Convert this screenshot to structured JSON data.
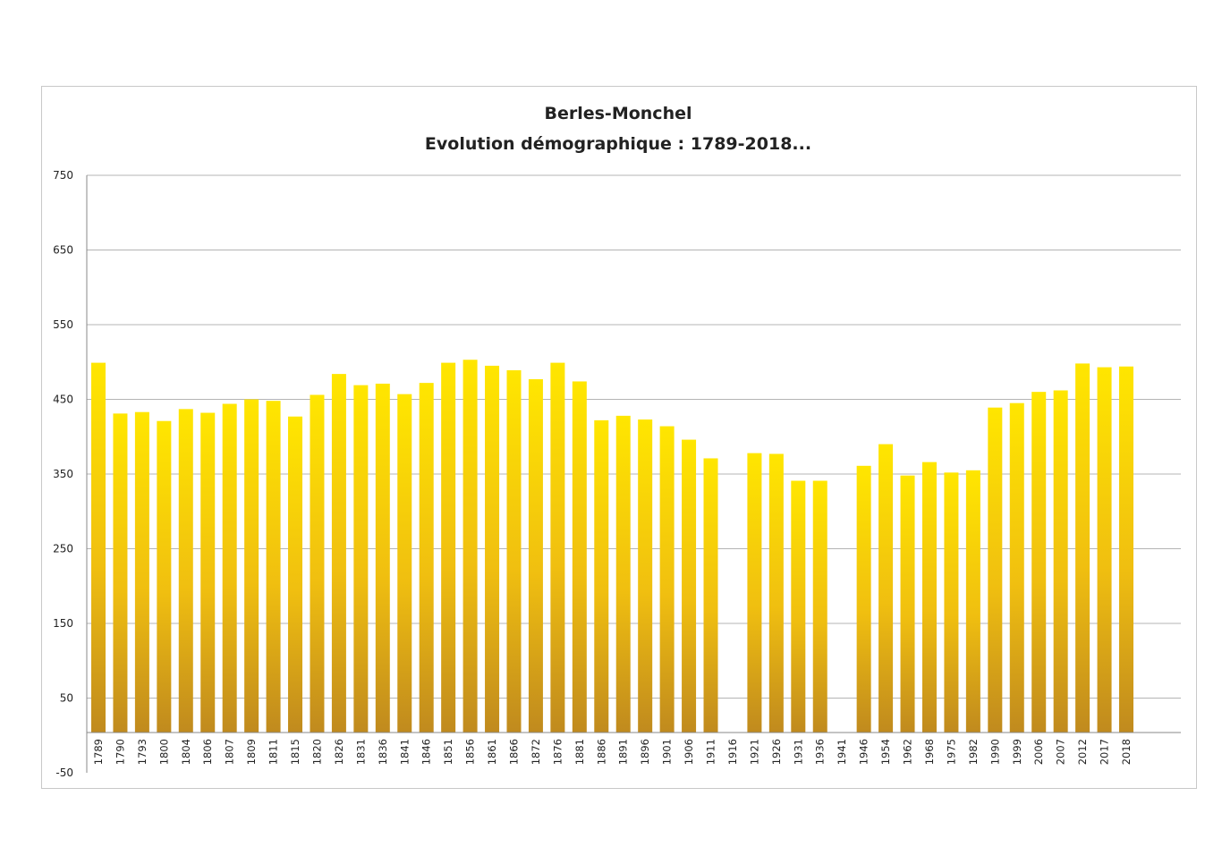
{
  "chart_data": {
    "type": "bar",
    "title": "Berles-Monchel",
    "subtitle": "Evolution démographique : 1789-2018...",
    "xlabel": "",
    "ylabel": "",
    "ylim": [
      -50,
      750
    ],
    "y_ticks": [
      -50,
      50,
      150,
      250,
      350,
      450,
      550,
      650,
      750
    ],
    "y_tick_labels": [
      "-50",
      "50",
      "150",
      "250",
      "350",
      "450",
      "550",
      "650",
      "750"
    ],
    "grid": true,
    "legend": "none",
    "bar_color_top": "#ffe600",
    "bar_color_bottom": "#c08a1e",
    "categories": [
      "1789",
      "1790",
      "1793",
      "1800",
      "1804",
      "1806",
      "1807",
      "1809",
      "1811",
      "1815",
      "1820",
      "1826",
      "1831",
      "1836",
      "1841",
      "1846",
      "1851",
      "1856",
      "1861",
      "1866",
      "1872",
      "1876",
      "1881",
      "1886",
      "1891",
      "1896",
      "1901",
      "1906",
      "1911",
      "1916",
      "1921",
      "1926",
      "1931",
      "1936",
      "1941",
      "1946",
      "1954",
      "1962",
      "1968",
      "1975",
      "1982",
      "1990",
      "1999",
      "2006",
      "2007",
      "2012",
      "2017",
      "2018"
    ],
    "values": [
      499,
      431,
      433,
      421,
      437,
      432,
      444,
      450,
      448,
      427,
      456,
      484,
      469,
      471,
      457,
      472,
      499,
      503,
      495,
      489,
      477,
      499,
      474,
      422,
      428,
      423,
      414,
      396,
      371,
      null,
      378,
      377,
      341,
      341,
      null,
      361,
      390,
      348,
      366,
      352,
      355,
      439,
      445,
      460,
      462,
      498,
      493,
      494
    ]
  }
}
